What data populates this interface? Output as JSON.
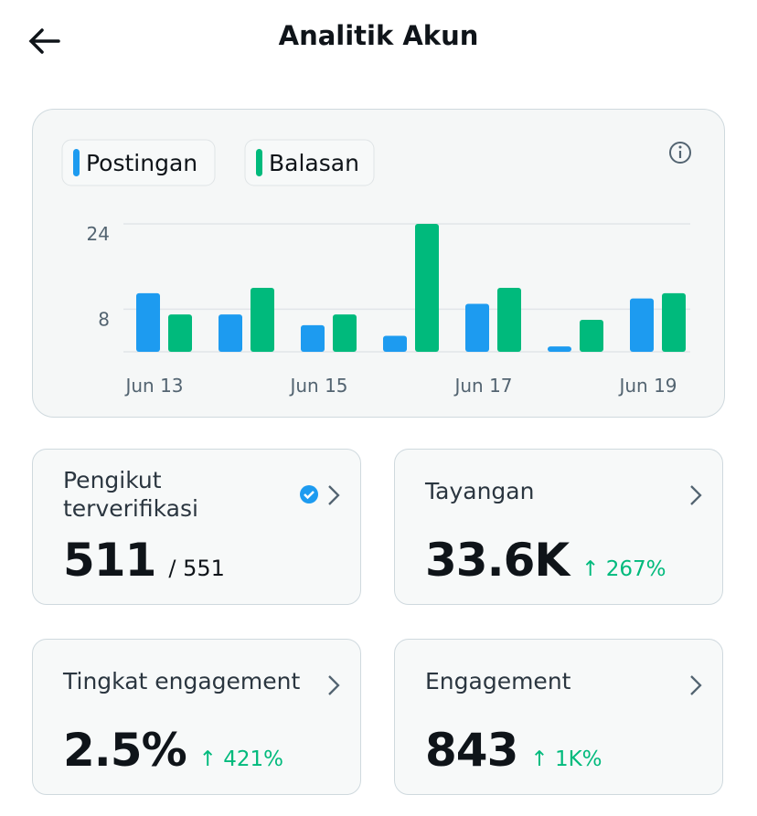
{
  "header": {
    "title": "Analitik Akun"
  },
  "chart_data": {
    "type": "bar",
    "categories": [
      "Jun 13",
      null,
      "Jun 15",
      null,
      "Jun 17",
      null,
      "Jun 19"
    ],
    "series": [
      {
        "name": "Postingan",
        "color": "#1d9bf0",
        "values": [
          11,
          7,
          5,
          3,
          9,
          1,
          10
        ]
      },
      {
        "name": "Balasan",
        "color": "#00ba7c",
        "values": [
          7,
          12,
          7,
          24,
          12,
          6,
          11
        ]
      }
    ],
    "ylim": [
      0,
      24
    ],
    "yticks": [
      8,
      24
    ],
    "grid": true
  },
  "cards": [
    {
      "title": "Pengikut terverifikasi",
      "value": "511",
      "total": "/ 551"
    },
    {
      "title": "Tayangan",
      "value": "33.6K",
      "change": "267%"
    },
    {
      "title": "Tingkat engagement",
      "value": "2.5%",
      "change": "421%"
    },
    {
      "title": "Engagement",
      "value": "843",
      "change": "1K%"
    }
  ]
}
